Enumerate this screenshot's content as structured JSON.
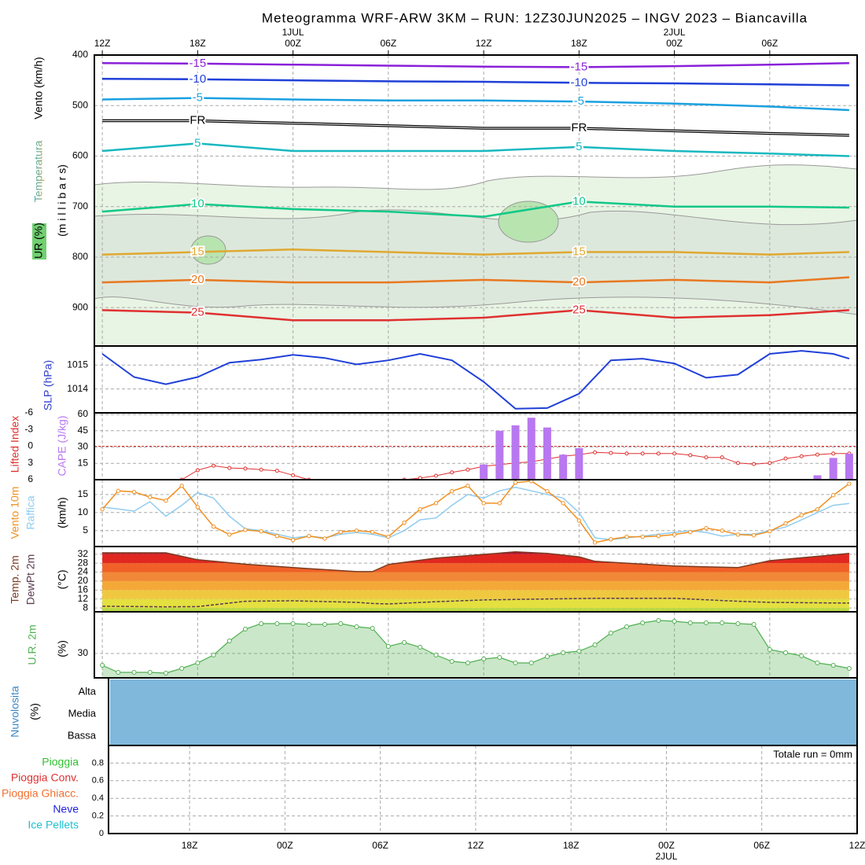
{
  "chart_data": [
    {
      "type": "isotherm",
      "title": "Meteogramma WRF-ARW 3KM – RUN: 12Z30JUN2025 – INGV 2023 – Biancavilla",
      "ylabels": [
        "Vento (km/h)",
        "Temperatura",
        "UR (%)",
        "(m i l l i b a r s)"
      ],
      "xlim": [
        -0.5,
        47.5
      ],
      "xticks": [
        {
          "value": 0,
          "label": "12Z"
        },
        {
          "value": 6,
          "label": "18Z"
        },
        {
          "value": 12,
          "label": "00Z"
        },
        {
          "value": 18,
          "label": "06Z"
        },
        {
          "value": 24,
          "label": "12Z"
        },
        {
          "value": 30,
          "label": "18Z"
        },
        {
          "value": 36,
          "label": "00Z"
        },
        {
          "value": 42,
          "label": "06Z"
        }
      ],
      "date_labels": [
        {
          "value": 12,
          "label": "1JUL"
        },
        {
          "value": 36,
          "label": "2JUL"
        }
      ],
      "ylim": [
        976,
        400
      ],
      "yticks": [
        400,
        500,
        600,
        700,
        800,
        900
      ],
      "grid": true,
      "x": [
        0,
        6,
        12,
        18,
        24,
        30,
        36,
        42,
        47
      ],
      "series": [
        {
          "name": "-15",
          "color": "#8a20d8",
          "values": [
            416,
            417,
            419,
            421,
            423,
            424,
            422,
            419,
            416
          ]
        },
        {
          "name": "-10",
          "color": "#2040d8",
          "values": [
            447,
            448,
            450,
            452,
            453,
            455,
            456,
            458,
            460
          ]
        },
        {
          "name": "-5",
          "color": "#1aa0e0",
          "values": [
            488,
            485,
            488,
            490,
            490,
            492,
            496,
            502,
            509
          ]
        },
        {
          "name": "FR",
          "color": "#000000",
          "values": [
            530,
            530,
            535,
            540,
            545,
            545,
            550,
            555,
            559
          ]
        },
        {
          "name": "5",
          "color": "#18b8c0",
          "values": [
            590,
            575,
            590,
            590,
            590,
            582,
            590,
            595,
            600
          ]
        },
        {
          "name": "10",
          "color": "#10c888",
          "values": [
            710,
            695,
            705,
            710,
            720,
            690,
            700,
            700,
            702
          ]
        },
        {
          "name": "15",
          "color": "#e0a830",
          "values": [
            795,
            790,
            785,
            790,
            795,
            790,
            790,
            795,
            790
          ]
        },
        {
          "name": "20",
          "color": "#e87820",
          "values": [
            850,
            845,
            850,
            850,
            845,
            850,
            845,
            850,
            840
          ]
        },
        {
          "name": "25",
          "color": "#e03030",
          "values": [
            905,
            910,
            925,
            925,
            920,
            905,
            920,
            915,
            905
          ]
        }
      ]
    },
    {
      "type": "line",
      "ylabel": "SLP (hPa)",
      "color": "#2040d8",
      "ylim": [
        1013,
        1015.8
      ],
      "yticks": [
        1014,
        1015
      ],
      "x": [
        0,
        2,
        4,
        6,
        8,
        10,
        12,
        14,
        16,
        18,
        20,
        22,
        24,
        26,
        28,
        30,
        32,
        34,
        36,
        38,
        40,
        42,
        44,
        46,
        47
      ],
      "values": [
        1015.47,
        1014.5,
        1014.2,
        1014.5,
        1015.1,
        1015.23,
        1015.43,
        1015.3,
        1015.03,
        1015.2,
        1015.47,
        1015.2,
        1014.3,
        1013.17,
        1013.2,
        1013.8,
        1015.2,
        1015.27,
        1015.07,
        1014.47,
        1014.6,
        1015.47,
        1015.6,
        1015.47,
        1015.27
      ]
    },
    {
      "type": "cape",
      "ylim": [
        6,
        -6
      ],
      "yticks": [
        -6,
        -3,
        0,
        3,
        6
      ],
      "y2lim": [
        0,
        61.5
      ],
      "y2ticks": [
        15,
        30,
        45,
        60
      ],
      "series": [
        {
          "name": "Lifted Index",
          "color": "#e03030",
          "x": [
            5,
            6,
            7,
            8,
            9,
            10,
            11,
            12,
            13,
            14,
            15,
            16,
            17,
            18,
            19,
            20,
            21,
            22,
            23,
            24,
            25,
            26,
            27,
            28,
            29,
            30,
            31,
            32,
            33,
            34,
            35,
            36,
            37,
            38,
            39,
            40,
            41,
            42,
            43,
            44,
            45,
            46,
            47
          ],
          "values": [
            6,
            4.3,
            3.5,
            3.9,
            4.0,
            4.2,
            4.4,
            5.2,
            6,
            null,
            null,
            null,
            null,
            null,
            6,
            5.7,
            5.3,
            4.7,
            4.2,
            3.6,
            3.3,
            3.0,
            2.8,
            2.3,
            1.8,
            1.5,
            1.1,
            1.2,
            1.3,
            1.3,
            1.3,
            1.3,
            1.6,
            2.0,
            2.0,
            3.0,
            3.2,
            3.0,
            2.2,
            1.8,
            1.5,
            1.3,
            1.3
          ]
        },
        {
          "name": "CAPE (J/kg)",
          "color": "#b878f0",
          "axis": "y2",
          "x": [
            24,
            25,
            26,
            27,
            28,
            29,
            30,
            45,
            46,
            47
          ],
          "values": [
            14,
            45,
            50,
            57,
            48,
            23,
            29,
            4,
            20,
            24
          ]
        }
      ]
    },
    {
      "type": "wind",
      "ylabel": "(km/h)",
      "ylim": [
        0.6,
        19.1
      ],
      "yticks": [
        5,
        10,
        15
      ],
      "x": [
        0,
        1,
        2,
        3,
        4,
        5,
        6,
        7,
        8,
        9,
        10,
        11,
        12,
        13,
        14,
        15,
        16,
        17,
        18,
        19,
        20,
        21,
        22,
        23,
        24,
        25,
        26,
        27,
        28,
        29,
        30,
        31,
        32,
        33,
        34,
        35,
        36,
        37,
        38,
        39,
        40,
        41,
        42,
        43,
        44,
        45,
        46,
        47
      ],
      "series": [
        {
          "name": "Vento 10m",
          "color": "#f09020",
          "values": [
            10.9,
            16,
            15.7,
            14.3,
            13.3,
            17.4,
            11.5,
            6.1,
            3.9,
            5.2,
            4.8,
            3.5,
            2.4,
            3.5,
            2.8,
            4.6,
            5,
            4.6,
            3.3,
            7.2,
            10.9,
            12.6,
            15.9,
            17.4,
            12.6,
            12.6,
            18.3,
            18.7,
            15.9,
            12.6,
            7.8,
            1.7,
            2.6,
            3.3,
            3.3,
            3.5,
            3.9,
            4.6,
            5.7,
            5,
            3.9,
            3.7,
            4.8,
            7,
            9.3,
            10.9,
            14.8,
            18
          ]
        },
        {
          "name": "Raffica",
          "color": "#90ccf0",
          "values": [
            11.5,
            11,
            10.4,
            13,
            9,
            12,
            15.5,
            14,
            9,
            5.5,
            5,
            4,
            3,
            3.5,
            3,
            4,
            4.5,
            4,
            3,
            5,
            8,
            8.5,
            12,
            15,
            14,
            16,
            17,
            16,
            15,
            14,
            10,
            3,
            2.5,
            3,
            3.5,
            4,
            4.5,
            5,
            4.5,
            3.5,
            4,
            4,
            5,
            6,
            8,
            10,
            12,
            12.5
          ]
        }
      ]
    },
    {
      "type": "temperature",
      "ylabel": "(°C)",
      "ylim": [
        6.3,
        35.4
      ],
      "yticks": [
        8,
        12,
        16,
        20,
        24,
        28,
        32
      ],
      "band_colors": [
        "#b8d840",
        "#e4e040",
        "#f0c840",
        "#f4a838",
        "#f08838",
        "#f06028",
        "#e02820",
        "#b01030"
      ],
      "x": [
        0,
        4,
        6,
        9,
        12,
        16,
        17,
        18,
        21,
        24,
        26,
        28,
        30,
        31,
        36,
        40,
        42,
        45,
        47
      ],
      "series": [
        {
          "name": "Temp. 2m",
          "color": "#7a3a20",
          "values": [
            32.6,
            32.6,
            29.5,
            27.5,
            26,
            24.2,
            24.2,
            27.4,
            30.2,
            31.9,
            33,
            32.3,
            30.8,
            28.8,
            26.7,
            26,
            29.1,
            31,
            32.3
          ]
        },
        {
          "name": "DewPt 2m",
          "color": "#5a3a50",
          "values": [
            8.8,
            8.5,
            8.6,
            11,
            11.2,
            10.5,
            10,
            9.8,
            10.8,
            11.6,
            11.8,
            12,
            12.2,
            12.3,
            12.3,
            11,
            10.5,
            10.3,
            10.2
          ]
        }
      ]
    },
    {
      "type": "area",
      "ylabel": "(%)",
      "ylim": [
        14.5,
        56.5
      ],
      "yticks": [
        30
      ],
      "x": [
        0,
        1,
        2,
        3,
        4,
        5,
        6,
        7,
        8,
        9,
        10,
        11,
        12,
        13,
        14,
        15,
        16,
        17,
        18,
        19,
        20,
        21,
        22,
        23,
        24,
        25,
        26,
        27,
        28,
        29,
        30,
        31,
        32,
        33,
        34,
        35,
        36,
        37,
        38,
        39,
        40,
        41,
        42,
        43,
        44,
        45,
        46,
        47
      ],
      "series": [
        {
          "name": "U.R. 2m",
          "color": "#50b050",
          "values": [
            22.5,
            18,
            18,
            18,
            17.5,
            20.5,
            24,
            29,
            38,
            45.5,
            49,
            49,
            49,
            48.5,
            48.5,
            49,
            47,
            46,
            34.5,
            37,
            34,
            29,
            25,
            24,
            26.5,
            27.5,
            24,
            24,
            28,
            30.5,
            31.5,
            35.5,
            43,
            47,
            49.5,
            51,
            50.5,
            49.5,
            49.5,
            49.5,
            49,
            48.5,
            32.5,
            30.5,
            28.5,
            24,
            22.5,
            20.5
          ]
        }
      ]
    },
    {
      "type": "cloud",
      "title": "Nuvolosita",
      "ylabel": "(%)",
      "levels": [
        "Alta",
        "Media",
        "Bassa"
      ],
      "color": "#80b8dc"
    },
    {
      "type": "precip",
      "annotation": "Totale run = 0mm",
      "ylim": [
        0,
        1
      ],
      "yticks": [
        0,
        0.2,
        0.4,
        0.6,
        0.8
      ],
      "xlim": [
        1,
        48
      ],
      "xticks": [
        {
          "value": 6,
          "label": "18Z"
        },
        {
          "value": 12,
          "label": "00Z"
        },
        {
          "value": 18,
          "label": "06Z"
        },
        {
          "value": 24,
          "label": "12Z"
        },
        {
          "value": 30,
          "label": "18Z"
        },
        {
          "value": 36,
          "label": "00Z"
        },
        {
          "value": 42,
          "label": "06Z"
        },
        {
          "value": 48,
          "label": "12Z"
        }
      ],
      "date_labels": [
        {
          "value": 36,
          "label": "2JUL"
        }
      ],
      "series": [
        {
          "name": "Pioggia",
          "color": "#30c030"
        },
        {
          "name": "Pioggia Conv.",
          "color": "#e03030"
        },
        {
          "name": "Pioggia Ghiacc.",
          "color": "#f07030"
        },
        {
          "name": "Neve",
          "color": "#2020e0"
        },
        {
          "name": "Ice Pellets",
          "color": "#20c0d0"
        }
      ]
    }
  ]
}
